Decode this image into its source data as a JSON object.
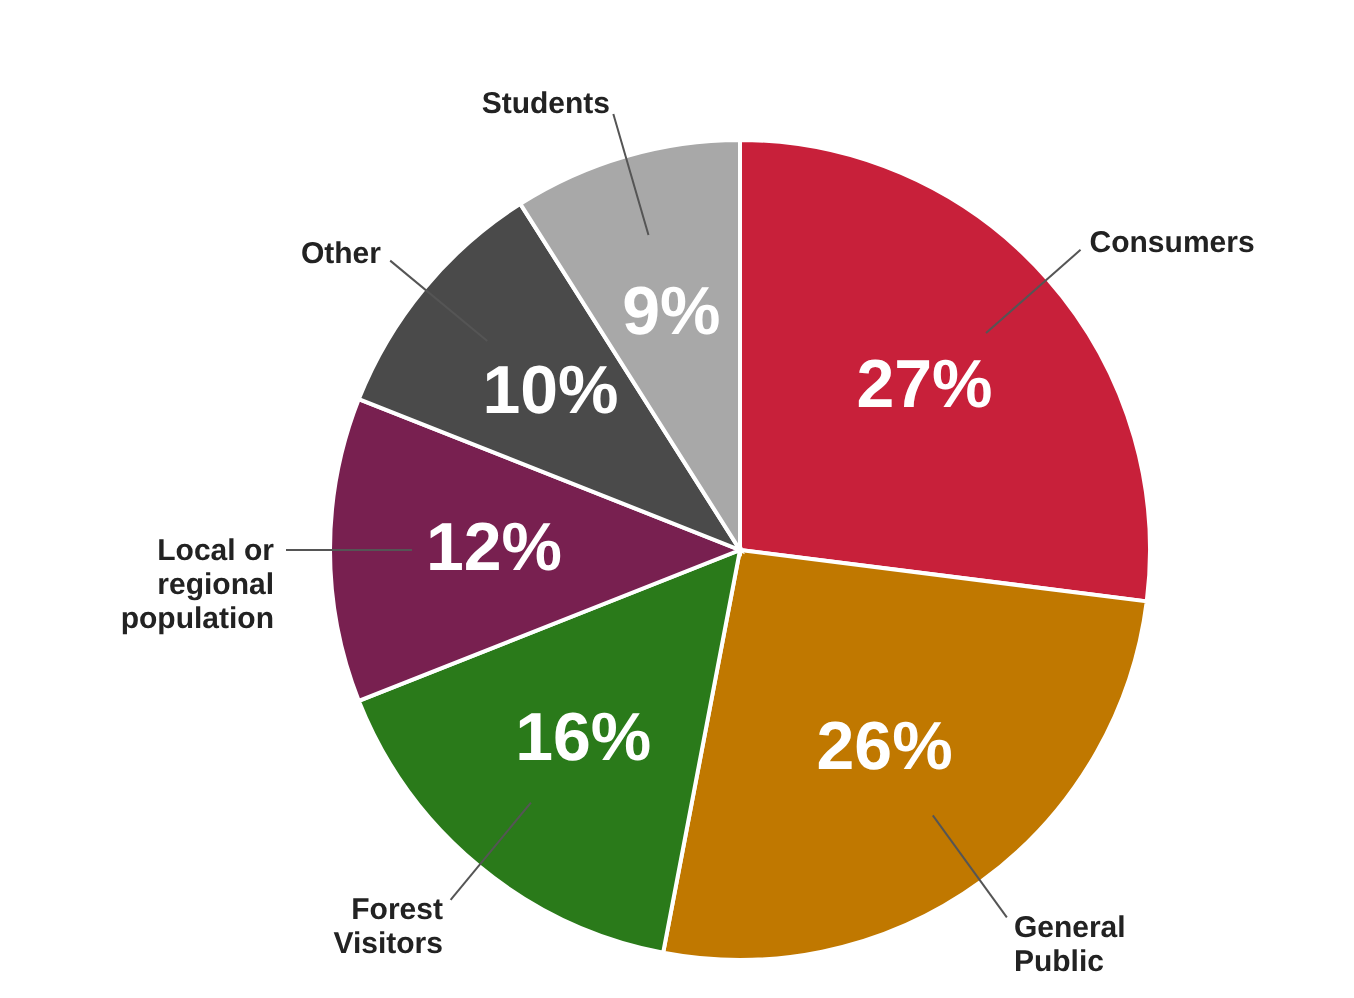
{
  "chart_data": {
    "type": "pie",
    "categories": [
      "Consumers",
      "General\nPublic",
      "Forest\nVisitors",
      "Local or\nregional\npopulation",
      "Other",
      "Students"
    ],
    "values": [
      27,
      26,
      16,
      12,
      10,
      9
    ],
    "value_labels": [
      "27%",
      "26%",
      "16%",
      "12%",
      "10%",
      "9%"
    ],
    "colors": [
      "#c8203a",
      "#c07800",
      "#2a7a1a",
      "#782050",
      "#4a4a4a",
      "#a8a8a8"
    ]
  }
}
